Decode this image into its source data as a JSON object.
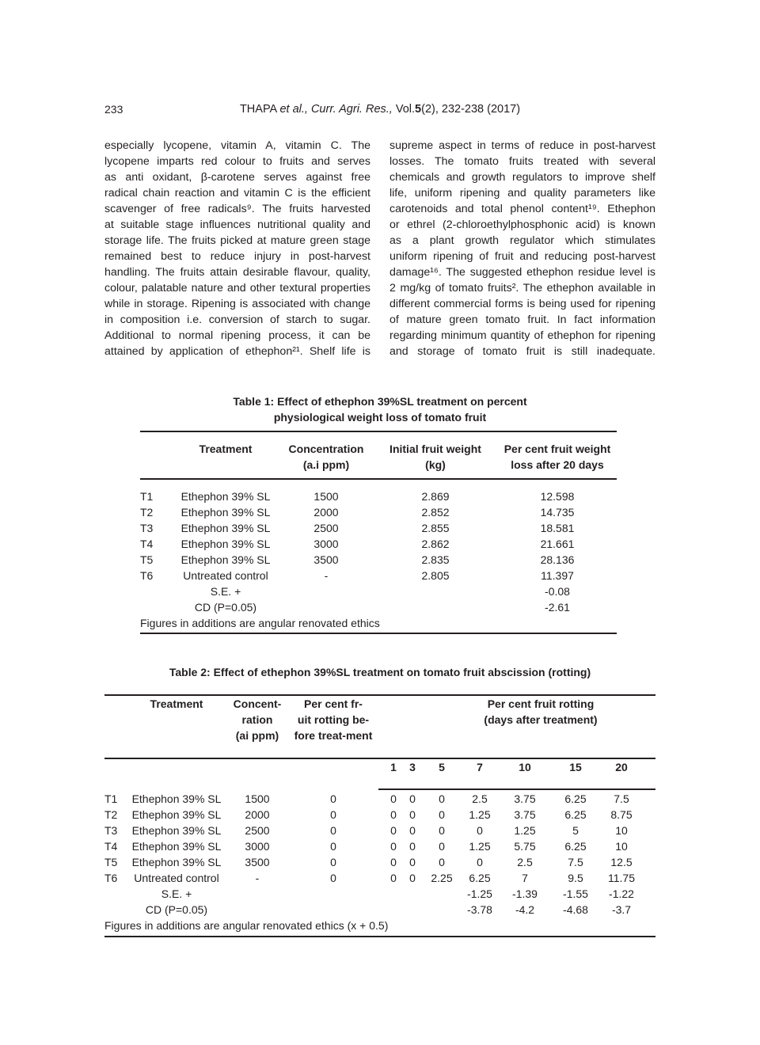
{
  "header": {
    "page_number": "233",
    "authors": "THAPA",
    "etal": "et al.,",
    "journal": "Curr. Agri. Res.,",
    "vol_prefix": "Vol.",
    "volume": "5",
    "issue_pages": "(2), 232-238 (2017)"
  },
  "body": {
    "left_column": [
      "especially lycopene, vitamin A, vitamin C. The",
      "lycopene imparts red colour to fruits and serves",
      "as anti oxidant, β-carotene serves against free",
      "radical chain reaction and vitamin C is the efficient",
      "scavenger of free radicals⁹. The fruits harvested",
      "at suitable stage influences nutritional quality and",
      "storage life. The fruits picked at mature green stage",
      "remained best to reduce injury in post-harvest",
      "handling. The fruits attain desirable flavour, quality,",
      "colour, palatable nature and other textural properties",
      "while in storage. Ripening is associated with change",
      "in composition i.e. conversion of starch to sugar.",
      "Additional to normal ripening process, it can be",
      "attained by application of ethephon²¹. Shelf life is"
    ],
    "right_column": [
      "supreme aspect in terms of reduce in post-harvest",
      "losses. The tomato fruits treated with several",
      "chemicals and growth regulators to improve shelf",
      "life, uniform ripening and quality parameters like",
      "carotenoids and total phenol content¹⁹. Ethephon",
      "or ethrel (2-chloroethylphosphonic acid) is known",
      "as a plant growth regulator which stimulates",
      "uniform ripening of fruit and reducing post-harvest",
      "damage¹⁶. The suggested ethephon residue level is",
      "2 mg/kg of tomato fruits². The ethephon available in",
      "different commercial forms is being used for ripening",
      "of mature green tomato fruit. In fact information",
      "regarding minimum quantity of ethephon for ripening",
      "and storage of tomato fruit is still inadequate."
    ]
  },
  "table1": {
    "caption": [
      "Table 1: Effect of ethephon 39%SL treatment on percent",
      "physiological weight loss of tomato fruit"
    ],
    "headers": [
      [
        "Treatment"
      ],
      [
        "Concentration",
        "(a.i ppm)"
      ],
      [
        "Initial fruit weight",
        "(kg)"
      ],
      [
        "Per cent fruit weight",
        "loss after 20 days"
      ]
    ],
    "rows": [
      [
        "T1",
        "Ethephon 39% SL",
        "1500",
        "2.869",
        "12.598"
      ],
      [
        "T2",
        "Ethephon 39% SL",
        "2000",
        "2.852",
        "14.735"
      ],
      [
        "T3",
        "Ethephon 39% SL",
        "2500",
        "2.855",
        "18.581"
      ],
      [
        "T4",
        "Ethephon 39% SL",
        "3000",
        "2.862",
        "21.661"
      ],
      [
        "T5",
        "Ethephon 39% SL",
        "3500",
        "2.835",
        "28.136"
      ],
      [
        "T6",
        "Untreated control",
        "-",
        "2.805",
        "11.397"
      ]
    ],
    "stats": [
      [
        "S.E. +",
        "-0.08"
      ],
      [
        "CD (P=0.05)",
        "-2.61"
      ]
    ],
    "footnote": "Figures in additions are angular renovated ethics"
  },
  "table2": {
    "caption": "Table 2: Effect of ethephon 39%SL treatment on tomato fruit abscission (rotting)",
    "headers": [
      [
        "Treatment"
      ],
      [
        "Concent-",
        "ration",
        "(ai ppm)"
      ],
      [
        "Per cent fr-",
        "uit rotting be-",
        "fore treat-ment"
      ],
      [
        "Per cent fruit rotting",
        "(days after treatment)"
      ]
    ],
    "days": [
      "1",
      "3",
      "5",
      "7",
      "10",
      "15",
      "20"
    ],
    "rows": [
      [
        "T1",
        "Ethephon 39% SL",
        "1500",
        "0",
        "0",
        "0",
        "0",
        "2.5",
        "3.75",
        "6.25",
        "7.5"
      ],
      [
        "T2",
        "Ethephon 39% SL",
        "2000",
        "0",
        "0",
        "0",
        "0",
        "1.25",
        "3.75",
        "6.25",
        "8.75"
      ],
      [
        "T3",
        "Ethephon 39% SL",
        "2500",
        "0",
        "0",
        "0",
        "0",
        "0",
        "1.25",
        "5",
        "10"
      ],
      [
        "T4",
        "Ethephon 39% SL",
        "3000",
        "0",
        "0",
        "0",
        "0",
        "1.25",
        "5.75",
        "6.25",
        "10"
      ],
      [
        "T5",
        "Ethephon 39% SL",
        "3500",
        "0",
        "0",
        "0",
        "0",
        "0",
        "2.5",
        "7.5",
        "12.5"
      ],
      [
        "T6",
        "Untreated control",
        "-",
        "0",
        "0",
        "0",
        "2.25",
        "6.25",
        "7",
        "9.5",
        "11.75"
      ]
    ],
    "stats": [
      [
        "S.E. +",
        "-1.25",
        "-1.39",
        "-1.55",
        "-1.22"
      ],
      [
        "CD (P=0.05)",
        "-3.78",
        "-4.2",
        "-4.68",
        "-3.7"
      ]
    ],
    "footnote": "Figures in additions are angular renovated ethics (x + 0.5)"
  }
}
